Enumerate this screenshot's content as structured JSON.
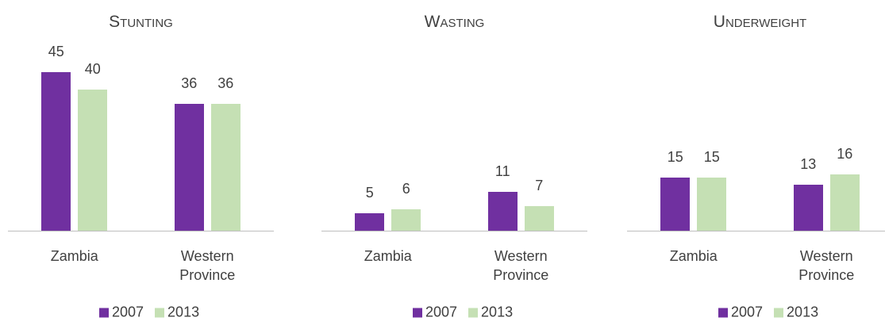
{
  "chart_data": [
    {
      "type": "bar",
      "title": "Stunting",
      "categories": [
        "Zambia",
        "Western Province"
      ],
      "series": [
        {
          "name": "2007",
          "color": "#7030a0",
          "values": [
            45,
            36
          ]
        },
        {
          "name": "2013",
          "color": "#c5e0b4",
          "values": [
            40,
            36
          ]
        }
      ],
      "ylim": [
        0,
        45
      ]
    },
    {
      "type": "bar",
      "title": "Wasting",
      "categories": [
        "Zambia",
        "Western Province"
      ],
      "series": [
        {
          "name": "2007",
          "color": "#7030a0",
          "values": [
            5,
            11
          ]
        },
        {
          "name": "2013",
          "color": "#c5e0b4",
          "values": [
            6,
            7
          ]
        }
      ],
      "ylim": [
        0,
        45
      ]
    },
    {
      "type": "bar",
      "title": "Underweight",
      "categories": [
        "Zambia",
        "Western Province"
      ],
      "series": [
        {
          "name": "2007",
          "color": "#7030a0",
          "values": [
            15,
            13
          ]
        },
        {
          "name": "2013",
          "color": "#c5e0b4",
          "values": [
            15,
            16
          ]
        }
      ],
      "ylim": [
        0,
        45
      ]
    }
  ]
}
